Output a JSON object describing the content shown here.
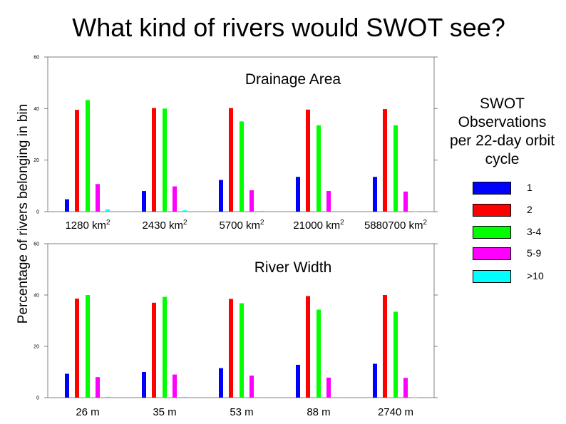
{
  "title": "What kind of rivers would SWOT see?",
  "ylabel": "Percentage of rivers belonging in bin",
  "legend": {
    "title_lines": [
      "SWOT",
      "Observations",
      "per 22-day orbit",
      "cycle"
    ],
    "items": [
      {
        "label": "1",
        "color": "#0000ff"
      },
      {
        "label": "2",
        "color": "#ff0000"
      },
      {
        "label": "3-4",
        "color": "#00ff00"
      },
      {
        "label": "5-9",
        "color": "#ff00ff"
      },
      {
        "label": ">10",
        "color": "#00ffff"
      }
    ]
  },
  "chart_data": [
    {
      "type": "bar",
      "title": "Drainage Area",
      "categories": [
        {
          "text": "1280 km",
          "sup": "2"
        },
        {
          "text": "2430 km",
          "sup": "2"
        },
        {
          "text": "5700 km",
          "sup": "2"
        },
        {
          "text": "21000 km",
          "sup": "2"
        },
        {
          "text": "5880700 km",
          "sup": "2"
        }
      ],
      "ylim": [
        0,
        60
      ],
      "yticks": [
        "0",
        "20",
        "40",
        "60"
      ],
      "grid": false,
      "series": [
        {
          "name": "1",
          "color": "#0000ff",
          "values": [
            4.8,
            8.0,
            12.3,
            13.5,
            13.5
          ]
        },
        {
          "name": "2",
          "color": "#ff0000",
          "values": [
            39.5,
            40.2,
            40.2,
            39.6,
            39.8
          ]
        },
        {
          "name": "3-4",
          "color": "#00ff00",
          "values": [
            43.3,
            40.0,
            35.0,
            33.5,
            33.5
          ]
        },
        {
          "name": "5-9",
          "color": "#ff00ff",
          "values": [
            10.7,
            9.8,
            8.3,
            8.0,
            7.8
          ]
        },
        {
          "name": ">10",
          "color": "#00ffff",
          "values": [
            0.9,
            0.5,
            0.3,
            0.2,
            0.1
          ]
        }
      ]
    },
    {
      "type": "bar",
      "title": "River Width",
      "categories": [
        {
          "text": "26 m",
          "sup": ""
        },
        {
          "text": "35 m",
          "sup": ""
        },
        {
          "text": "53 m",
          "sup": ""
        },
        {
          "text": "88 m",
          "sup": ""
        },
        {
          "text": "2740 m",
          "sup": ""
        }
      ],
      "ylim": [
        0,
        60
      ],
      "yticks": [
        "0",
        "20",
        "40",
        "60"
      ],
      "grid": false,
      "series": [
        {
          "name": "1",
          "color": "#0000ff",
          "values": [
            9.3,
            10.0,
            11.5,
            12.8,
            13.2
          ]
        },
        {
          "name": "2",
          "color": "#ff0000",
          "values": [
            38.6,
            37.0,
            38.5,
            39.6,
            40.0
          ]
        },
        {
          "name": "3-4",
          "color": "#00ff00",
          "values": [
            40.0,
            39.3,
            36.8,
            34.3,
            33.5
          ]
        },
        {
          "name": "5-9",
          "color": "#ff00ff",
          "values": [
            8.0,
            9.0,
            8.6,
            7.8,
            7.7
          ]
        },
        {
          "name": ">10",
          "color": "#00ffff",
          "values": [
            0.3,
            0.3,
            0.2,
            0.2,
            0.1
          ]
        }
      ]
    }
  ]
}
